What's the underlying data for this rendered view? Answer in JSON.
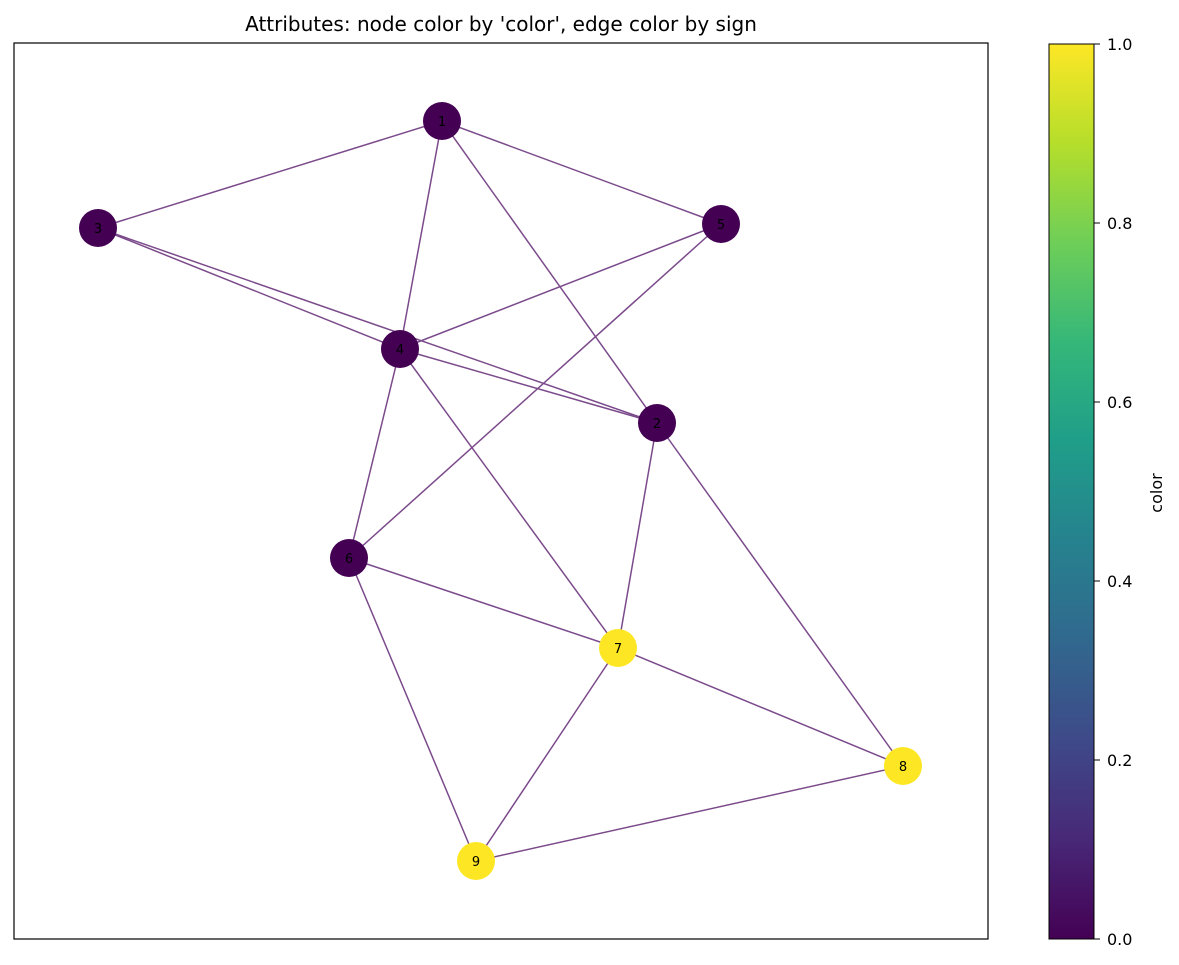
{
  "title": "Attributes: node color by 'color', edge color by sign",
  "colorbar": {
    "label": "color",
    "range": [
      0,
      1
    ],
    "ticks": [
      "0.0",
      "0.2",
      "0.4",
      "0.6",
      "0.8",
      "1.0"
    ],
    "colormap": "viridis",
    "stops": [
      "#440154",
      "#482878",
      "#3e4a89",
      "#31688e",
      "#26828e",
      "#1f9e89",
      "#35b779",
      "#6ece58",
      "#b5de2b",
      "#fde725"
    ]
  },
  "colors": {
    "edge": "#7b4a8b",
    "node_color_0": "#440154",
    "node_color_1": "#fde725"
  },
  "graph": {
    "nodes": [
      {
        "id": "1",
        "color": 0
      },
      {
        "id": "2",
        "color": 0
      },
      {
        "id": "3",
        "color": 0
      },
      {
        "id": "4",
        "color": 0
      },
      {
        "id": "5",
        "color": 0
      },
      {
        "id": "6",
        "color": 0
      },
      {
        "id": "7",
        "color": 1
      },
      {
        "id": "8",
        "color": 1
      },
      {
        "id": "9",
        "color": 1
      }
    ],
    "edges": [
      [
        "1",
        "3"
      ],
      [
        "1",
        "5"
      ],
      [
        "1",
        "4"
      ],
      [
        "1",
        "2"
      ],
      [
        "3",
        "4"
      ],
      [
        "3",
        "2"
      ],
      [
        "4",
        "5"
      ],
      [
        "4",
        "2"
      ],
      [
        "4",
        "6"
      ],
      [
        "4",
        "7"
      ],
      [
        "5",
        "6"
      ],
      [
        "2",
        "7"
      ],
      [
        "2",
        "8"
      ],
      [
        "6",
        "7"
      ],
      [
        "6",
        "9"
      ],
      [
        "7",
        "8"
      ],
      [
        "7",
        "9"
      ],
      [
        "9",
        "8"
      ]
    ]
  }
}
